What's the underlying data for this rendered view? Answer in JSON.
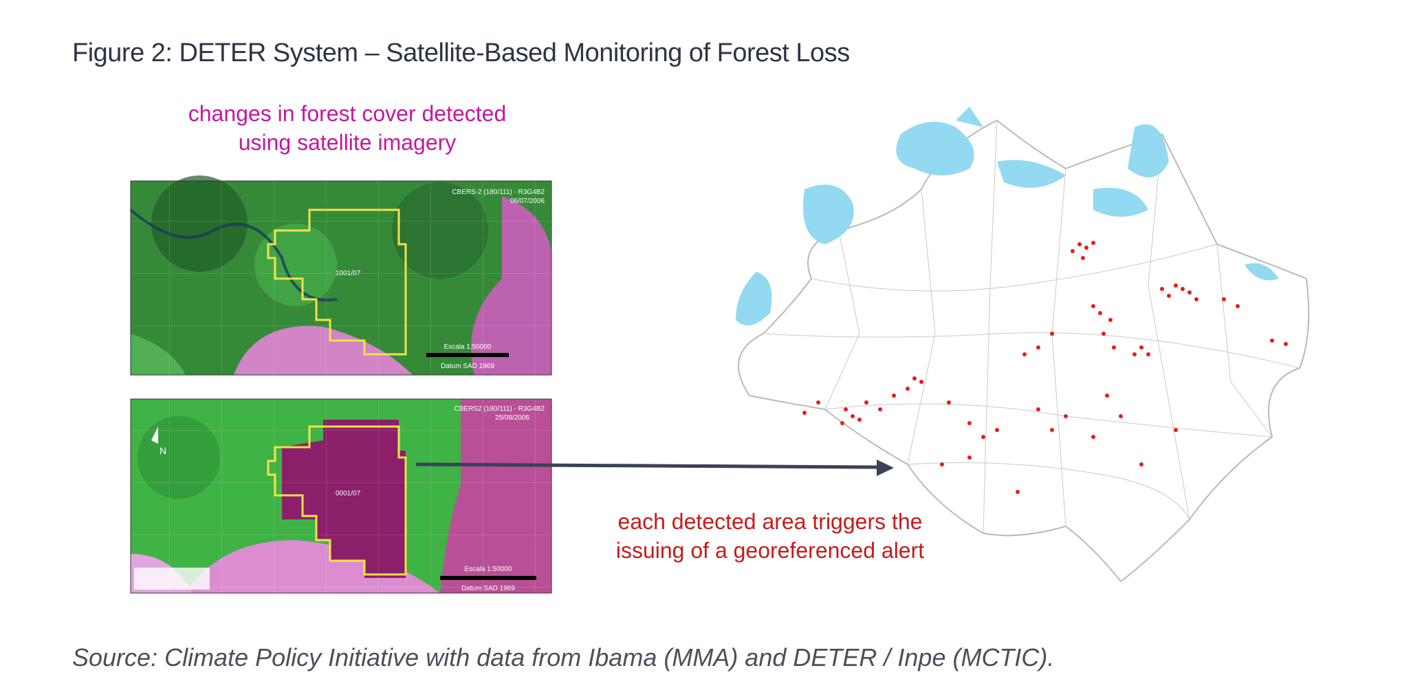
{
  "title": "Figure 2: DETER System – Satellite-Based Monitoring of Forest Loss",
  "caption_top": {
    "line1": "changes in forest cover detected",
    "line2": "using satellite imagery"
  },
  "caption_right": {
    "line1": "each detected area triggers the",
    "line2": "issuing of a georeferenced alert"
  },
  "source": "Source: Climate Policy Initiative with data from Ibama (MMA) and DETER / Inpe (MCTIC).",
  "satellite_images": {
    "top": {
      "header": "CBERS-2 (180/111) - R3G4B2",
      "date": "06/07/2006",
      "polygon_label": "1001/07",
      "scale": "Escala 1:50000",
      "datum": "Datum SAD 1969"
    },
    "bottom": {
      "header": "CBERS2 (180/111) - R3G4B2",
      "date": "25/09/2006",
      "polygon_label": "0001/07",
      "scale": "Escala 1:50000",
      "datum": "Datum SAD 1969",
      "north": "N"
    }
  },
  "colors": {
    "title": "#2d3445",
    "caption_top": "#c4179e",
    "caption_right": "#c81a1a",
    "forest": "#3aa83a",
    "deforest": "#d35bc4",
    "polygon": "#f4e24a",
    "water": "#93d9f2",
    "alert": "#e81b1b",
    "arrow": "#3a4256"
  }
}
